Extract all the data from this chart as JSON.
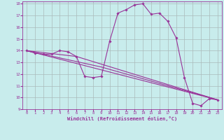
{
  "title": "",
  "xlabel": "Windchill (Refroidissement éolien,°C)",
  "ylabel": "",
  "xlim": [
    -0.5,
    23.5
  ],
  "ylim": [
    9,
    18.2
  ],
  "yticks": [
    9,
    10,
    11,
    12,
    13,
    14,
    15,
    16,
    17,
    18
  ],
  "xticks": [
    0,
    1,
    2,
    3,
    4,
    5,
    6,
    7,
    8,
    9,
    10,
    11,
    12,
    13,
    14,
    15,
    16,
    17,
    18,
    19,
    20,
    21,
    22,
    23
  ],
  "background_color": "#c8ecec",
  "grid_color": "#aabbbb",
  "line_color": "#993399",
  "lines": [
    {
      "x": [
        0,
        1,
        2,
        3,
        4,
        5,
        6,
        7,
        8,
        9,
        10,
        11,
        12,
        13,
        14,
        15,
        16,
        17,
        18,
        19,
        20,
        21,
        22,
        23
      ],
      "y": [
        14.0,
        13.8,
        13.7,
        13.7,
        14.0,
        13.9,
        13.5,
        11.8,
        11.7,
        11.8,
        14.8,
        17.2,
        17.5,
        17.9,
        18.0,
        17.1,
        17.2,
        16.5,
        15.1,
        11.7,
        9.5,
        9.3,
        9.9,
        9.8
      ],
      "has_markers": true
    },
    {
      "x": [
        0,
        23
      ],
      "y": [
        14.0,
        9.8
      ],
      "has_markers": false
    },
    {
      "x": [
        0,
        6,
        23
      ],
      "y": [
        14.0,
        13.5,
        9.8
      ],
      "has_markers": false
    },
    {
      "x": [
        0,
        9,
        23
      ],
      "y": [
        14.0,
        12.6,
        9.8
      ],
      "has_markers": false
    }
  ]
}
